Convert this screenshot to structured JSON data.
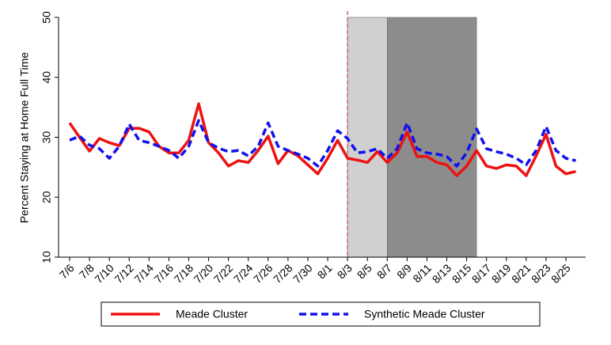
{
  "chart_data": {
    "type": "line",
    "y_label": "Percent Staying at Home Full Time",
    "categories": [
      "7/6",
      null,
      "7/8",
      null,
      "7/10",
      null,
      "7/12",
      null,
      "7/14",
      null,
      "7/16",
      null,
      "7/18",
      null,
      "7/20",
      null,
      "7/22",
      null,
      "7/24",
      null,
      "7/26",
      null,
      "7/28",
      null,
      "7/30",
      null,
      "8/1",
      null,
      "8/3",
      null,
      "8/5",
      null,
      "8/7",
      null,
      "8/9",
      null,
      "8/11",
      null,
      "8/13",
      null,
      "8/15",
      null,
      "8/17",
      null,
      "8/19",
      null,
      "8/21",
      null,
      "8/23",
      null,
      "8/25",
      null
    ],
    "series": [
      {
        "name": "Meade Cluster",
        "color": "#ee1111",
        "dash": false,
        "values": [
          32.4,
          30.0,
          27.7,
          29.8,
          29.1,
          28.6,
          31.5,
          31.5,
          30.9,
          28.5,
          27.4,
          27.4,
          29.5,
          35.6,
          29.1,
          27.4,
          25.2,
          26.1,
          25.8,
          27.8,
          30.2,
          25.6,
          27.8,
          26.9,
          25.4,
          23.9,
          26.5,
          29.5,
          26.5,
          26.2,
          25.8,
          27.6,
          25.8,
          27.4,
          30.9,
          26.8,
          26.8,
          25.8,
          25.4,
          23.6,
          25.2,
          27.8,
          25.2,
          24.8,
          25.4,
          25.2,
          23.6,
          26.9,
          30.5,
          25.2,
          23.9,
          24.3
        ]
      },
      {
        "name": "Synthetic Meade Cluster",
        "color": "#1111ee",
        "dash": true,
        "values": [
          29.5,
          30.2,
          28.7,
          28.1,
          26.5,
          28.5,
          32.2,
          29.5,
          29.1,
          28.5,
          27.8,
          26.5,
          28.5,
          32.8,
          29.1,
          28.2,
          27.6,
          27.8,
          26.9,
          28.5,
          32.4,
          28.5,
          27.8,
          27.2,
          26.5,
          25.2,
          27.8,
          31.1,
          29.8,
          27.4,
          27.6,
          28.1,
          26.5,
          28.1,
          32.4,
          28.1,
          27.4,
          27.2,
          26.8,
          25.2,
          27.4,
          31.4,
          28.1,
          27.6,
          27.2,
          26.5,
          25.4,
          27.8,
          31.8,
          27.8,
          26.5,
          26.1
        ]
      }
    ],
    "ylim": [
      10,
      50
    ],
    "yticks": [
      10,
      20,
      30,
      40,
      50
    ],
    "grid": false,
    "shaded": [
      {
        "start": 28,
        "end": 32,
        "color": "#d0d0d0"
      },
      {
        "start": 32,
        "end": 41,
        "color": "#8c8c8c"
      }
    ],
    "vline": {
      "at": 28,
      "color": "#d0607f"
    },
    "legend": "bottom"
  }
}
